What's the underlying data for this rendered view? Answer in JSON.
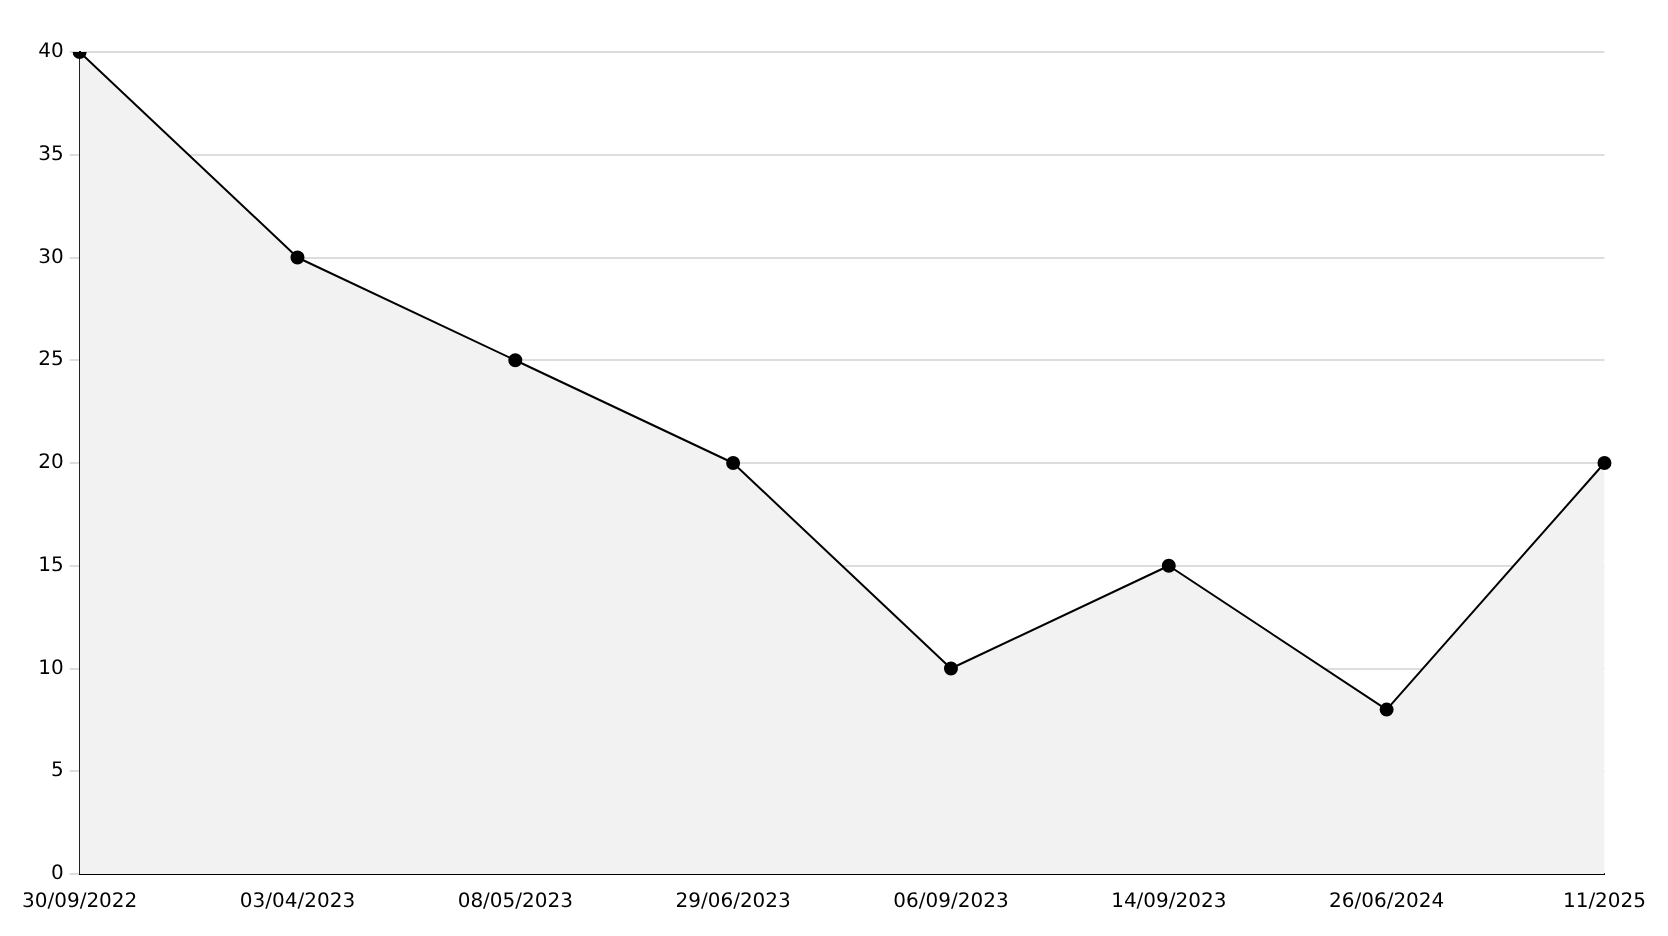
{
  "chart_data": {
    "type": "area",
    "categories": [
      "30/09/2022",
      "03/04/2023",
      "08/05/2023",
      "29/06/2023",
      "06/09/2023",
      "14/09/2023",
      "26/06/2024",
      "11/2025"
    ],
    "series": [
      {
        "color": "#000000",
        "values": [
          40,
          30,
          25,
          20,
          10,
          15,
          8,
          20
        ]
      }
    ],
    "ylim": [
      0,
      40
    ],
    "yticks": [
      0,
      5,
      10,
      15,
      20,
      25,
      30,
      35,
      40
    ],
    "grid": "y",
    "legend": false,
    "marker": "circle",
    "line_style": "solid"
  }
}
